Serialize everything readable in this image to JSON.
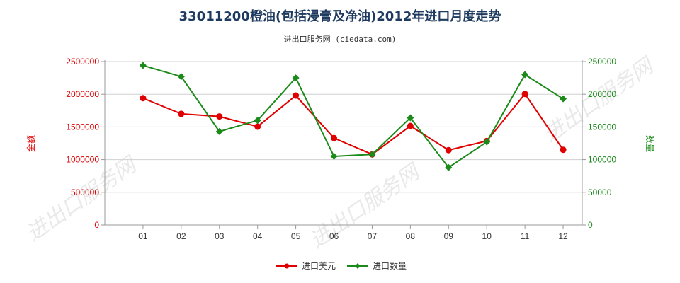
{
  "colors": {
    "series_value": "#e00000",
    "series_quantity": "#1a8a1a",
    "title": "#1f3a5f",
    "axis": "#555555",
    "grid": "#d0d0d0"
  },
  "chart_data": {
    "type": "line",
    "title": "33011200橙油(包括浸膏及净油)2012年进口月度走势",
    "subtitle": "进出口服务网 (ciedata.com)",
    "categories": [
      "01",
      "02",
      "03",
      "04",
      "05",
      "06",
      "07",
      "08",
      "09",
      "10",
      "11",
      "12"
    ],
    "y_left": {
      "label": "金额",
      "ylim": [
        0,
        2500000
      ],
      "ticks": [
        "0",
        "500000",
        "1000000",
        "1500000",
        "2000000",
        "2500000"
      ]
    },
    "y_right": {
      "label": "数量",
      "ylim": [
        0,
        250000
      ],
      "ticks": [
        "0",
        "50000",
        "100000",
        "150000",
        "200000",
        "250000"
      ]
    },
    "series": [
      {
        "name": "进口美元",
        "axis": "left",
        "color": "#e00000",
        "marker": "circle",
        "values": [
          1940000,
          1700000,
          1660000,
          1505000,
          1980000,
          1330000,
          1080000,
          1515000,
          1145000,
          1285000,
          2005000,
          1150000
        ]
      },
      {
        "name": "进口数量",
        "axis": "right",
        "color": "#1a8a1a",
        "marker": "diamond",
        "values": [
          244000,
          227000,
          143000,
          160000,
          225000,
          105000,
          108000,
          164000,
          88000,
          127000,
          230000,
          193000
        ]
      }
    ],
    "grid": true,
    "legend_position": "bottom-center"
  },
  "watermarks": [
    "进出口服务网",
    "进出口服务网",
    "进出口服务网"
  ]
}
